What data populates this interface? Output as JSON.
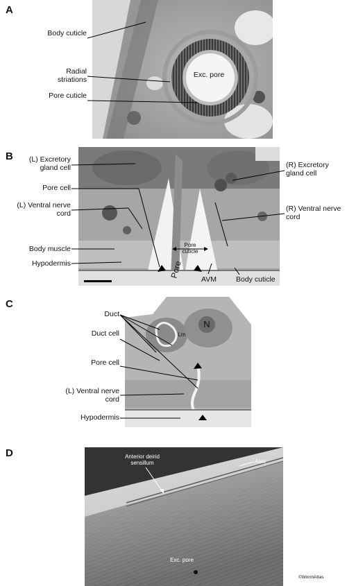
{
  "panels": {
    "a": {
      "letter": "A",
      "labels": {
        "body_cuticle": "Body cuticle",
        "radial_striations": "Radial striations",
        "pore_cuticle": "Pore cuticle",
        "exc_pore": "Exc. pore"
      }
    },
    "b": {
      "letter": "B",
      "labels": {
        "l_excretory_gland_cell": "(L) Excretory gland cell",
        "pore_cell": "Pore cell",
        "l_ventral_nerve_cord": "(L) Ventral nerve cord",
        "body_muscle": "Body muscle",
        "hypodermis": "Hypodermis",
        "r_excretory_gland_cell": "(R) Excretory gland cell",
        "r_ventral_nerve_cord": "(R) Ventral nerve cord",
        "pore_cuticle": "Pore cuticle",
        "pore": "Pore",
        "avm": "AVM",
        "body_cuticle": "Body cuticle"
      }
    },
    "c": {
      "letter": "C",
      "labels": {
        "duct": "Duct",
        "duct_cell": "Duct cell",
        "pore_cell": "Pore cell",
        "l_ventral_nerve_cord": "(L) Ventral nerve cord",
        "hypodermis": "Hypodermis",
        "n": "N",
        "lm": "Lm"
      }
    },
    "d": {
      "letter": "D",
      "labels": {
        "anterior_deirid_sensillum": "Anterior deirid sensillum",
        "alae": "Alae",
        "exc_pore": "Exc. pore"
      },
      "credit": "©WormAtlas"
    }
  },
  "colors": {
    "em_light": "#c8c8c8",
    "em_mid": "#9a9a9a",
    "em_dark": "#555555",
    "sem_dark": "#333333"
  }
}
